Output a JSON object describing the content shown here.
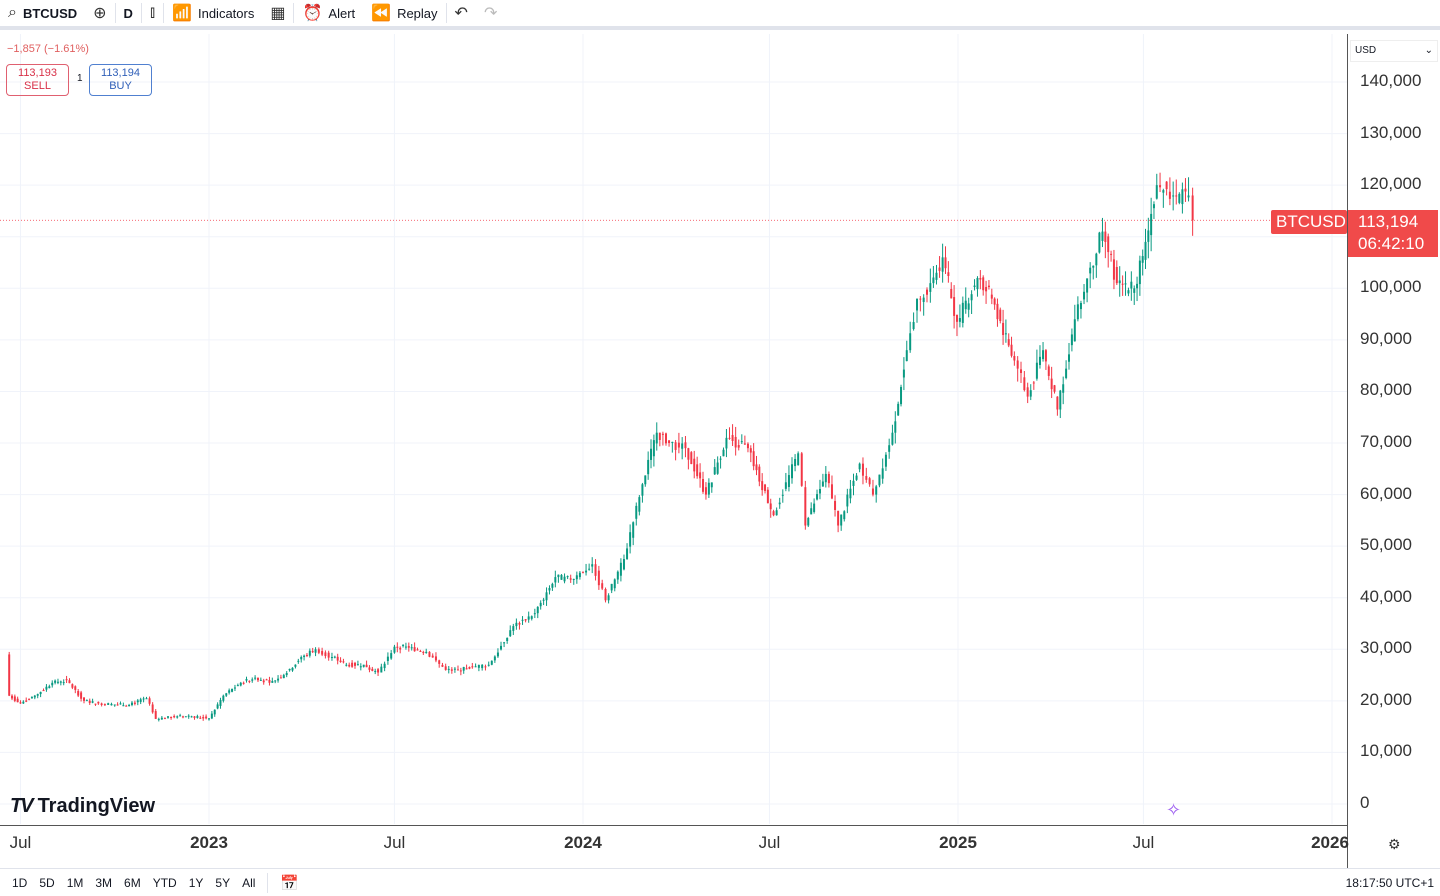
{
  "toolbar": {
    "symbol": "BTCUSD",
    "interval": "D",
    "indicators": "Indicators",
    "alert": "Alert",
    "replay": "Replay"
  },
  "legend": {
    "change": "−1,857 (−1.61%)",
    "sell_price": "113,193",
    "sell_label": "SELL",
    "spread": "1",
    "buy_price": "113,194",
    "buy_label": "BUY"
  },
  "currency": "USD",
  "price_tag": {
    "symbol": "BTCUSD",
    "price": "113,194",
    "countdown": "06:42:10"
  },
  "brand": "TradingView",
  "ranges": [
    "1D",
    "5D",
    "1M",
    "3M",
    "6M",
    "YTD",
    "1Y",
    "5Y",
    "All"
  ],
  "clock": "18:17:50 UTC+1",
  "colors": {
    "up": "#089981",
    "down": "#f23645",
    "tag": "#f04a4a"
  },
  "chart_data": {
    "type": "candlestick",
    "y_ticks": [
      "140,000",
      "130,000",
      "120,000",
      "100,000",
      "90,000",
      "80,000",
      "70,000",
      "60,000",
      "50,000",
      "40,000",
      "30,000",
      "20,000",
      "10,000",
      "0"
    ],
    "y_tick_values": [
      140000,
      130000,
      120000,
      100000,
      90000,
      80000,
      70000,
      60000,
      50000,
      40000,
      30000,
      20000,
      10000,
      0
    ],
    "x_ticks": [
      {
        "label": "Jul",
        "date": "2022-07-01"
      },
      {
        "label": "2023",
        "date": "2023-01-01"
      },
      {
        "label": "Jul",
        "date": "2023-07-01"
      },
      {
        "label": "2024",
        "date": "2024-01-01"
      },
      {
        "label": "Jul",
        "date": "2024-07-01"
      },
      {
        "label": "2025",
        "date": "2025-01-01"
      },
      {
        "label": "Jul",
        "date": "2025-07-01"
      },
      {
        "label": "2026",
        "date": "2026-01-01"
      }
    ],
    "ylim": [
      0,
      140000
    ],
    "grid": true,
    "last_price": 113194,
    "open_first": 29000,
    "closes": [
      [
        "2022-06-20",
        21000
      ],
      [
        "2022-07-01",
        19500
      ],
      [
        "2022-07-15",
        21000
      ],
      [
        "2022-08-01",
        23500
      ],
      [
        "2022-08-15",
        24000
      ],
      [
        "2022-09-01",
        20000
      ],
      [
        "2022-09-15",
        19500
      ],
      [
        "2022-10-01",
        19300
      ],
      [
        "2022-10-15",
        19200
      ],
      [
        "2022-11-01",
        20500
      ],
      [
        "2022-11-10",
        16500
      ],
      [
        "2022-12-01",
        17000
      ],
      [
        "2022-12-15",
        17000
      ],
      [
        "2023-01-01",
        16600
      ],
      [
        "2023-01-15",
        21000
      ],
      [
        "2023-02-01",
        23500
      ],
      [
        "2023-02-15",
        24500
      ],
      [
        "2023-03-01",
        23500
      ],
      [
        "2023-03-15",
        25000
      ],
      [
        "2023-04-01",
        28500
      ],
      [
        "2023-04-15",
        30000
      ],
      [
        "2023-05-01",
        28500
      ],
      [
        "2023-05-15",
        27000
      ],
      [
        "2023-06-01",
        27000
      ],
      [
        "2023-06-15",
        25500
      ],
      [
        "2023-07-01",
        30500
      ],
      [
        "2023-07-15",
        30300
      ],
      [
        "2023-08-01",
        29500
      ],
      [
        "2023-08-20",
        26000
      ],
      [
        "2023-09-01",
        25900
      ],
      [
        "2023-09-15",
        26600
      ],
      [
        "2023-10-01",
        27000
      ],
      [
        "2023-10-25",
        34500
      ],
      [
        "2023-11-15",
        37000
      ],
      [
        "2023-12-05",
        44000
      ],
      [
        "2023-12-20",
        43500
      ],
      [
        "2024-01-10",
        46500
      ],
      [
        "2024-01-23",
        39500
      ],
      [
        "2024-02-10",
        47500
      ],
      [
        "2024-02-28",
        62000
      ],
      [
        "2024-03-13",
        72000
      ],
      [
        "2024-03-25",
        70000
      ],
      [
        "2024-04-10",
        69000
      ],
      [
        "2024-04-30",
        60000
      ],
      [
        "2024-05-20",
        71000
      ],
      [
        "2024-06-10",
        69000
      ],
      [
        "2024-07-05",
        56000
      ],
      [
        "2024-07-29",
        68000
      ],
      [
        "2024-08-05",
        54000
      ],
      [
        "2024-08-25",
        64000
      ],
      [
        "2024-09-06",
        54000
      ],
      [
        "2024-09-27",
        66000
      ],
      [
        "2024-10-10",
        60000
      ],
      [
        "2024-10-29",
        72000
      ],
      [
        "2024-11-12",
        88000
      ],
      [
        "2024-11-22",
        98000
      ],
      [
        "2024-12-05",
        101000
      ],
      [
        "2024-12-17",
        106000
      ],
      [
        "2024-12-31",
        93500
      ],
      [
        "2025-01-20",
        102000
      ],
      [
        "2025-02-03",
        98000
      ],
      [
        "2025-02-25",
        86000
      ],
      [
        "2025-03-10",
        79000
      ],
      [
        "2025-03-25",
        88000
      ],
      [
        "2025-04-08",
        76500
      ],
      [
        "2025-04-25",
        94000
      ],
      [
        "2025-05-10",
        104000
      ],
      [
        "2025-05-22",
        111000
      ],
      [
        "2025-06-05",
        101000
      ],
      [
        "2025-06-22",
        100000
      ],
      [
        "2025-07-03",
        109000
      ],
      [
        "2025-07-14",
        120000
      ],
      [
        "2025-07-30",
        118000
      ],
      [
        "2025-08-14",
        118000
      ],
      [
        "2025-08-18",
        113194
      ]
    ]
  }
}
